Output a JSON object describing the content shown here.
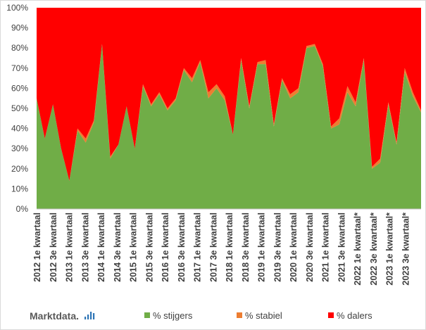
{
  "brand": {
    "name": "Marktdata.",
    "logo_icon": "bar-chart-icon"
  },
  "chart_data": {
    "type": "area",
    "stacked": true,
    "percent_stacked": true,
    "title": "",
    "xlabel": "",
    "ylabel": "",
    "ylim": [
      0,
      100
    ],
    "y_tick_labels": [
      "0%",
      "10%",
      "20%",
      "30%",
      "40%",
      "50%",
      "60%",
      "70%",
      "80%",
      "90%",
      "100%"
    ],
    "grid": false,
    "legend_position": "bottom",
    "x_tick_labels": [
      "2012 1e kwartaal",
      "2012 3e kwartaal",
      "2013 1e kwartaal",
      "2013 3e kwartaal",
      "2014 1e kwartaal",
      "2014 3e kwartaal",
      "2015 1e kwartaal",
      "2015 3e kwartaal",
      "2016 1e kwartaal",
      "2016 3e kwartaal",
      "2017 1e kwartaal",
      "2017 3e kwartaal",
      "2018 1e kwartaal",
      "2018 3e kwartaal",
      "2019 1e kwartaal",
      "2019 3e kwartaal",
      "2020 1e kwartaal",
      "2020 3e kwartaal",
      "2021 1e kwartaal",
      "2021 3e kwartaal",
      "2022 1e kwartaal*",
      "2022 3e kwartaal*",
      "2023 1e kwartaal*",
      "2023 3e kwartaal*"
    ],
    "series": [
      {
        "name": "% stijgers",
        "color": "#70ad47",
        "values": [
          55,
          35,
          52,
          30,
          14,
          39,
          33,
          43,
          82,
          25,
          32,
          51,
          30,
          61,
          51,
          57,
          49,
          54,
          69,
          63,
          73,
          55,
          60,
          54,
          37,
          74,
          50,
          72,
          72,
          41,
          64,
          55,
          58,
          80,
          81,
          71,
          40,
          42,
          58,
          51,
          74,
          20,
          23,
          52,
          32,
          68,
          56,
          48
        ]
      },
      {
        "name": "% stabiel",
        "color": "#ed7d31",
        "values": [
          0,
          0,
          0,
          0,
          0,
          1,
          2,
          1,
          0,
          1,
          0,
          0,
          0,
          1,
          1,
          1,
          1,
          1,
          1,
          2,
          1,
          3,
          2,
          2,
          0,
          1,
          1,
          1,
          2,
          1,
          1,
          2,
          2,
          1,
          1,
          1,
          1,
          3,
          3,
          2,
          1,
          1,
          2,
          1,
          1,
          2,
          2,
          1
        ]
      },
      {
        "name": "% dalers",
        "color": "#ff0000",
        "values": [
          45,
          65,
          48,
          70,
          86,
          60,
          65,
          56,
          18,
          74,
          68,
          49,
          70,
          38,
          48,
          42,
          50,
          45,
          30,
          35,
          26,
          42,
          38,
          44,
          63,
          25,
          49,
          27,
          26,
          58,
          35,
          43,
          40,
          19,
          18,
          28,
          59,
          55,
          39,
          47,
          25,
          79,
          75,
          47,
          67,
          30,
          42,
          51
        ]
      }
    ]
  }
}
